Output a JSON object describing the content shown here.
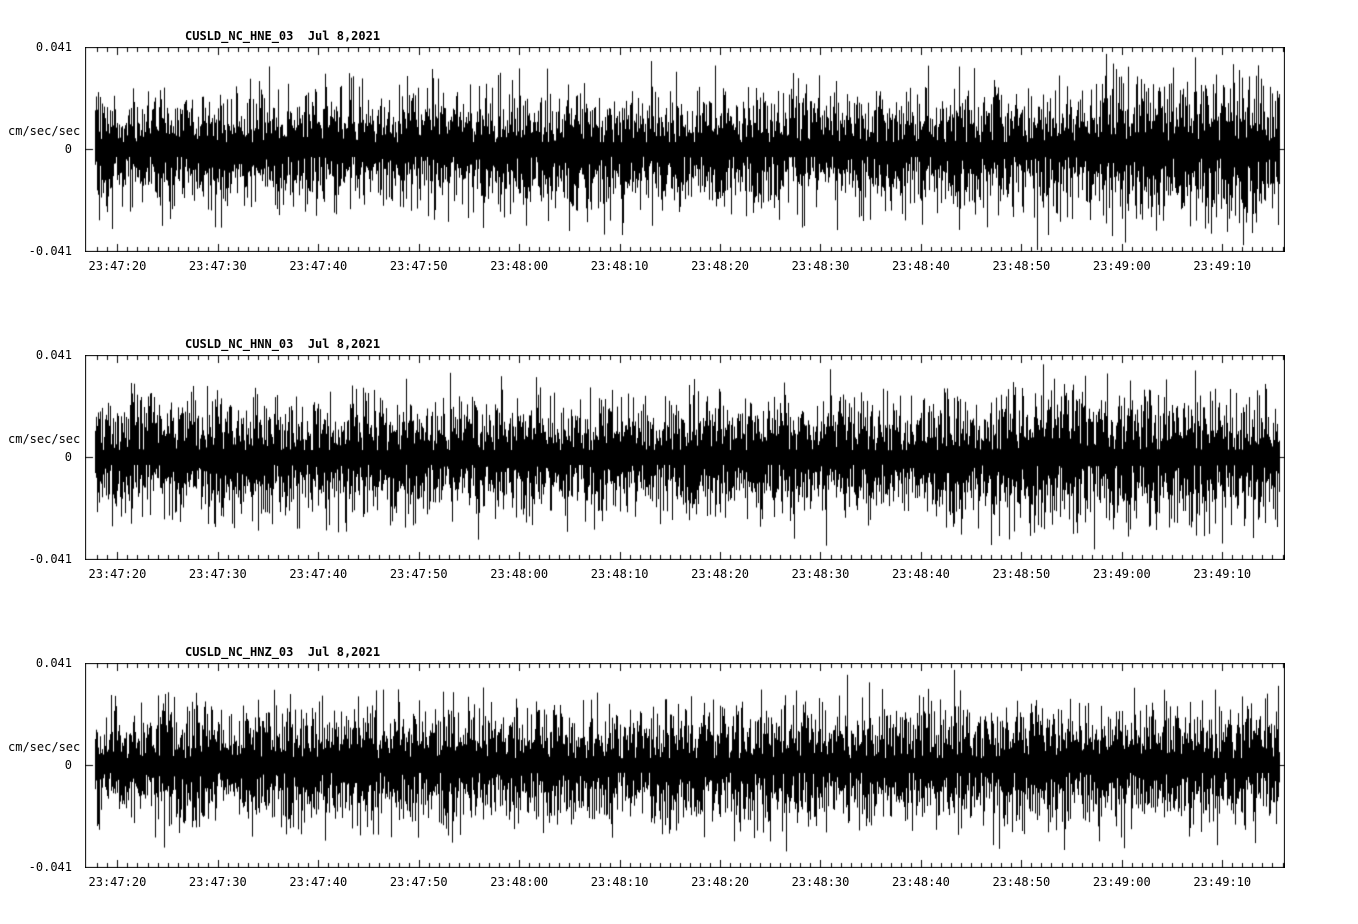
{
  "page": {
    "background_color": "#ffffff",
    "trace_color": "#000000"
  },
  "chart_data": [
    {
      "type": "line",
      "title": "CUSLD_NC_HNE_03  Jul 8,2021",
      "station": "CUSLD_NC_HNE_03",
      "date": "Jul 8,2021",
      "ylabel": "cm/sec/sec",
      "ylim": [
        -0.041,
        0.041
      ],
      "y_ticks": [
        0.041,
        0,
        -0.041
      ],
      "y_tick_labels": [
        "0.041",
        "0",
        "-0.041"
      ],
      "x_tick_labels": [
        "23:47:20",
        "23:47:30",
        "23:47:40",
        "23:47:50",
        "23:48:00",
        "23:48:10",
        "23:48:20",
        "23:48:30",
        "23:48:40",
        "23:48:50",
        "23:49:00",
        "23:49:10"
      ],
      "x_major_tick_interval_s": 10,
      "x_minor_tick_interval_s": 1,
      "grid": false,
      "legend": "none",
      "signal_description": "continuous broadband seismic background noise, amplitude increasing slightly after 23:49:00",
      "noise_seed": 7,
      "amplitude_envelope": [
        0.95,
        0.92,
        0.95,
        0.9,
        0.93,
        0.95,
        0.9,
        0.94,
        0.92,
        0.95,
        0.93,
        0.9,
        0.94,
        0.92,
        0.95,
        0.9,
        0.93,
        0.95,
        0.92,
        0.95,
        1.0,
        1.1,
        1.15,
        1.15,
        1.12
      ],
      "spikes": [
        {
          "x_frac": 0.795,
          "value": -0.041
        },
        {
          "x_frac": 0.853,
          "value": 0.039
        }
      ]
    },
    {
      "type": "line",
      "title": "CUSLD_NC_HNN_03  Jul 8,2021",
      "station": "CUSLD_NC_HNN_03",
      "date": "Jul 8,2021",
      "ylabel": "cm/sec/sec",
      "ylim": [
        -0.041,
        0.041
      ],
      "y_ticks": [
        0.041,
        0,
        -0.041
      ],
      "y_tick_labels": [
        "0.041",
        "0",
        "-0.041"
      ],
      "x_tick_labels": [
        "23:47:20",
        "23:47:30",
        "23:47:40",
        "23:47:50",
        "23:48:00",
        "23:48:10",
        "23:48:20",
        "23:48:30",
        "23:48:40",
        "23:48:50",
        "23:49:00",
        "23:49:10"
      ],
      "x_major_tick_interval_s": 10,
      "x_minor_tick_interval_s": 1,
      "grid": false,
      "legend": "none",
      "signal_description": "continuous broadband seismic background noise, slight amplitude bump near 23:48:50-23:49:00",
      "noise_seed": 101,
      "amplitude_envelope": [
        0.95,
        0.93,
        0.9,
        0.94,
        0.92,
        0.95,
        0.9,
        0.93,
        0.95,
        0.92,
        0.94,
        0.9,
        0.95,
        0.93,
        0.92,
        0.95,
        0.9,
        0.94,
        1.0,
        1.05,
        1.1,
        1.05,
        1.0,
        0.98,
        0.95
      ],
      "spikes": [
        {
          "x_frac": 0.62,
          "value": 0.036
        },
        {
          "x_frac": 0.8,
          "value": 0.038
        }
      ]
    },
    {
      "type": "line",
      "title": "CUSLD_NC_HNZ_03  Jul 8,2021",
      "station": "CUSLD_NC_HNZ_03",
      "date": "Jul 8,2021",
      "ylabel": "cm/sec/sec",
      "ylim": [
        -0.041,
        0.041
      ],
      "y_ticks": [
        0.041,
        0,
        -0.041
      ],
      "y_tick_labels": [
        "0.041",
        "0",
        "-0.041"
      ],
      "x_tick_labels": [
        "23:47:20",
        "23:47:30",
        "23:47:40",
        "23:47:50",
        "23:48:00",
        "23:48:10",
        "23:48:20",
        "23:48:30",
        "23:48:40",
        "23:48:50",
        "23:49:00",
        "23:49:10"
      ],
      "x_major_tick_interval_s": 10,
      "x_minor_tick_interval_s": 1,
      "grid": false,
      "legend": "none",
      "signal_description": "continuous broadband seismic background noise, roughly uniform amplitude",
      "noise_seed": 2021,
      "amplitude_envelope": [
        0.95,
        0.92,
        0.94,
        0.9,
        0.93,
        0.95,
        0.91,
        0.94,
        0.92,
        0.95,
        0.93,
        0.9,
        0.94,
        0.92,
        0.95,
        0.91,
        0.93,
        0.95,
        0.92,
        0.94,
        0.9,
        0.93,
        0.95,
        0.92,
        0.94
      ],
      "spikes": [
        {
          "x_frac": 0.635,
          "value": 0.037
        },
        {
          "x_frac": 0.725,
          "value": 0.039
        }
      ]
    }
  ]
}
